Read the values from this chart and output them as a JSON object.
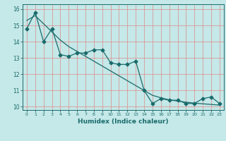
{
  "title": "",
  "xlabel": "Humidex (Indice chaleur)",
  "background_color": "#c5e8e8",
  "grid_color": "#e08080",
  "line_color": "#1a6b6b",
  "xlim": [
    -0.5,
    23.5
  ],
  "ylim": [
    9.8,
    16.3
  ],
  "yticks": [
    10,
    11,
    12,
    13,
    14,
    15,
    16
  ],
  "xticks": [
    0,
    1,
    2,
    3,
    4,
    5,
    6,
    7,
    8,
    9,
    10,
    11,
    12,
    13,
    14,
    15,
    16,
    17,
    18,
    19,
    20,
    21,
    22,
    23
  ],
  "series1_x": [
    0,
    1,
    2,
    3,
    4,
    5,
    6,
    7,
    8,
    9,
    10,
    11,
    12,
    13,
    14,
    15,
    16,
    17,
    18,
    19,
    20,
    21,
    22,
    23
  ],
  "series1_y": [
    14.8,
    15.8,
    14.0,
    14.8,
    13.2,
    13.1,
    13.3,
    13.3,
    13.5,
    13.5,
    12.7,
    12.6,
    12.6,
    12.8,
    11.0,
    10.2,
    10.5,
    10.4,
    10.4,
    10.2,
    10.2,
    10.5,
    10.6,
    10.2
  ],
  "series2_x": [
    0,
    1,
    2,
    3,
    4,
    5,
    6,
    7,
    8,
    9,
    10,
    11,
    12,
    13,
    14,
    15,
    16,
    17,
    18,
    19,
    20,
    21,
    22,
    23
  ],
  "series2_y": [
    15.3,
    15.6,
    15.1,
    14.6,
    14.1,
    13.7,
    13.4,
    13.1,
    12.8,
    12.5,
    12.2,
    11.9,
    11.6,
    11.3,
    11.0,
    10.7,
    10.55,
    10.42,
    10.35,
    10.28,
    10.22,
    10.18,
    10.14,
    10.1
  ]
}
